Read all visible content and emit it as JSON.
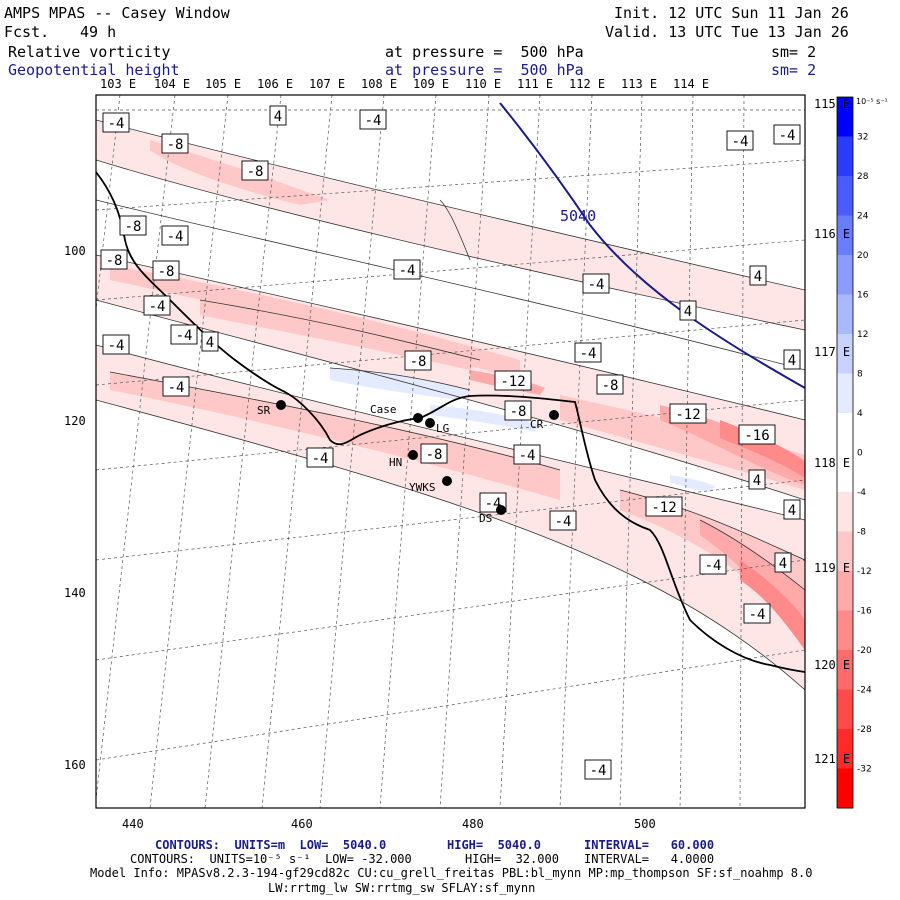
{
  "header": {
    "title": "AMPS MPAS -- Casey Window",
    "fcst_label": "Fcst.",
    "fcst_value": "49 h",
    "init": "Init. 12 UTC Sun 11 Jan 26",
    "valid": "Valid. 13 UTC Tue 13 Jan 26",
    "field1_name": "Relative vorticity",
    "field1_level": "at pressure =  500 hPa",
    "field1_sm": "sm= 2",
    "field2_name": "Geopotential height",
    "field2_level": "at pressure =  500 hPa",
    "field2_sm": "sm= 2"
  },
  "axes": {
    "lon_top": [
      "103 E",
      "104 E",
      "105 E",
      "106 E",
      "107 E",
      "108 E",
      "109 E",
      "110 E",
      "111 E",
      "112 E",
      "113 E",
      "114 E"
    ],
    "lat_right": [
      "115 E",
      "116 E",
      "117 E",
      "118 E",
      "119 E",
      "120 E",
      "121 E"
    ],
    "y_ticks": [
      "100",
      "120",
      "140",
      "160"
    ],
    "x_ticks": [
      "440",
      "460",
      "480",
      "500"
    ]
  },
  "colorbar": {
    "unit": "10⁻⁵ s⁻¹",
    "labels": [
      "32",
      "28",
      "24",
      "20",
      "16",
      "12",
      "8",
      "4",
      "0",
      "-4",
      "-8",
      "-12",
      "-16",
      "-20",
      "-24",
      "-28",
      "-32"
    ],
    "colors": [
      "#0000ff",
      "#2a3cff",
      "#4a5cff",
      "#6a7cff",
      "#8a9cff",
      "#aab8ff",
      "#c8d2ff",
      "#e4eaff",
      "#ffffff",
      "#ffffff",
      "#ffe4e4",
      "#ffc8c8",
      "#ffaaaa",
      "#ff8a8a",
      "#ff6a6a",
      "#ff4a4a",
      "#ff2a2a",
      "#ff0000"
    ]
  },
  "stations": [
    {
      "name": "SR"
    },
    {
      "name": "Case"
    },
    {
      "name": "LG"
    },
    {
      "name": "HN"
    },
    {
      "name": "YWKS"
    },
    {
      "name": "DS"
    },
    {
      "name": "CR"
    }
  ],
  "contour_labels": [
    "4",
    "-4",
    "-4",
    "-8",
    "-8",
    "-4",
    "-4",
    "-8",
    "-4",
    "-8",
    "-4",
    "-8",
    "-4",
    "4",
    "4",
    "-4",
    "-4",
    "4",
    "-4",
    "-8",
    "-12",
    "-4",
    "-8",
    "4",
    "-12",
    "-16",
    "-8",
    "-4",
    "-4",
    "-8",
    "4",
    "-12",
    "4",
    "-4",
    "4",
    "-4",
    "-4",
    "-4",
    "-4",
    "-4"
  ],
  "height_label": "5040",
  "footer": {
    "line1_left": "CONTOURS:  UNITS=m  LOW=  5040.0",
    "line1_mid": "HIGH=  5040.0",
    "line1_right": "INTERVAL=   60.000",
    "line2_left": "CONTOURS:  UNITS=10⁻⁵ s⁻¹  LOW= -32.000",
    "line2_mid": "HIGH=  32.000",
    "line2_right": "INTERVAL=   4.0000",
    "model_info": "Model Info: MPASv8.2.3-194-gf29cd82c CU:cu_grell_freitas PBL:bl_mynn MP:mp_thompson SF:sf_noahmp 8.0",
    "model_info2": "LW:rrtmg_lw SW:rrtmg_sw SFLAY:sf_mynn"
  }
}
